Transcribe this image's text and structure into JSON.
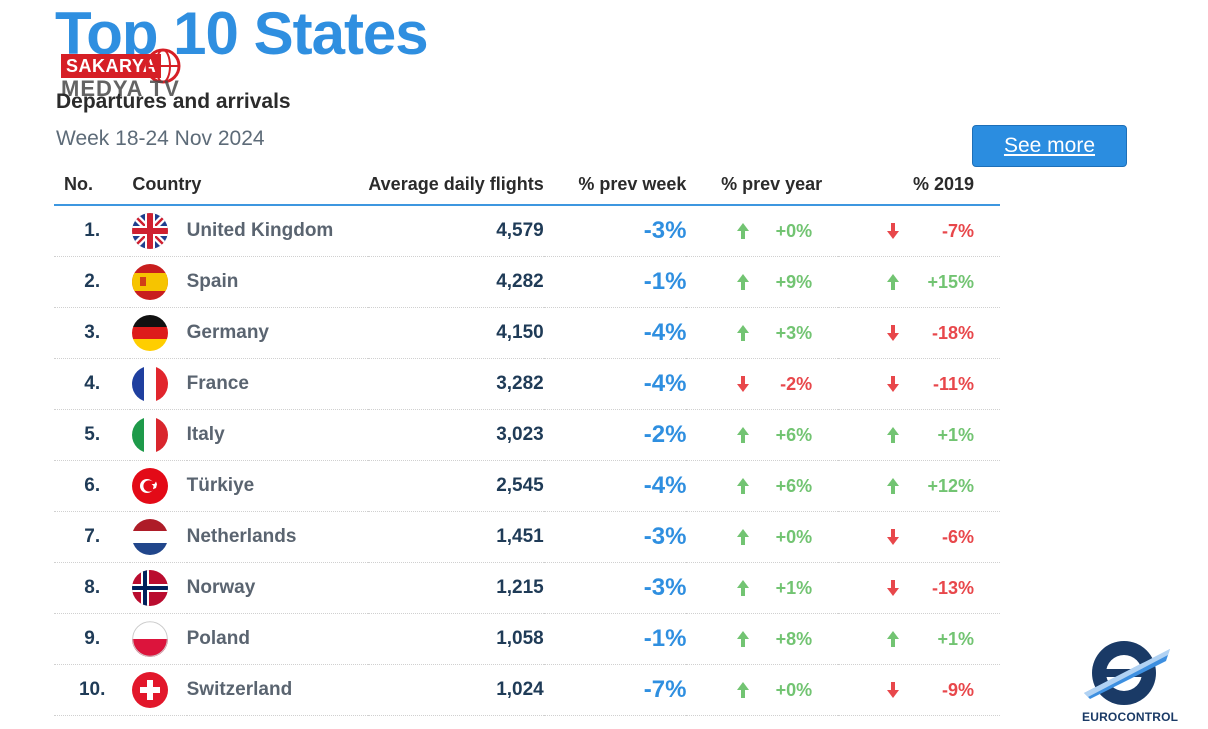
{
  "header": {
    "title": "Top 10 States",
    "subtitle": "Departures and arrivals",
    "week": "Week 18-24 Nov 2024",
    "see_more": "See more"
  },
  "watermark": {
    "badge": "SAKARYA",
    "text": "MEDYA TV"
  },
  "table": {
    "columns": [
      "No.",
      "Country",
      "Average daily flights",
      "% prev week",
      "% prev year",
      "% 2019"
    ],
    "rows": [
      {
        "no": "1.",
        "country": "United Kingdom",
        "flag": "uk-flag-icon",
        "flights": "4,579",
        "prev_week": "-3%",
        "prev_year": "+0%",
        "prev_year_dir": "up",
        "y2019": "-7%",
        "y2019_dir": "down"
      },
      {
        "no": "2.",
        "country": "Spain",
        "flag": "spain-flag-icon",
        "flights": "4,282",
        "prev_week": "-1%",
        "prev_year": "+9%",
        "prev_year_dir": "up",
        "y2019": "+15%",
        "y2019_dir": "up"
      },
      {
        "no": "3.",
        "country": "Germany",
        "flag": "germany-flag-icon",
        "flights": "4,150",
        "prev_week": "-4%",
        "prev_year": "+3%",
        "prev_year_dir": "up",
        "y2019": "-18%",
        "y2019_dir": "down"
      },
      {
        "no": "4.",
        "country": "France",
        "flag": "france-flag-icon",
        "flights": "3,282",
        "prev_week": "-4%",
        "prev_year": "-2%",
        "prev_year_dir": "down",
        "y2019": "-11%",
        "y2019_dir": "down"
      },
      {
        "no": "5.",
        "country": "Italy",
        "flag": "italy-flag-icon",
        "flights": "3,023",
        "prev_week": "-2%",
        "prev_year": "+6%",
        "prev_year_dir": "up",
        "y2019": "+1%",
        "y2019_dir": "up"
      },
      {
        "no": "6.",
        "country": "Türkiye",
        "flag": "turkiye-flag-icon",
        "flights": "2,545",
        "prev_week": "-4%",
        "prev_year": "+6%",
        "prev_year_dir": "up",
        "y2019": "+12%",
        "y2019_dir": "up"
      },
      {
        "no": "7.",
        "country": "Netherlands",
        "flag": "netherlands-flag-icon",
        "flights": "1,451",
        "prev_week": "-3%",
        "prev_year": "+0%",
        "prev_year_dir": "up",
        "y2019": "-6%",
        "y2019_dir": "down"
      },
      {
        "no": "8.",
        "country": "Norway",
        "flag": "norway-flag-icon",
        "flights": "1,215",
        "prev_week": "-3%",
        "prev_year": "+1%",
        "prev_year_dir": "up",
        "y2019": "-13%",
        "y2019_dir": "down"
      },
      {
        "no": "9.",
        "country": "Poland",
        "flag": "poland-flag-icon",
        "flights": "1,058",
        "prev_week": "-1%",
        "prev_year": "+8%",
        "prev_year_dir": "up",
        "y2019": "+1%",
        "y2019_dir": "up"
      },
      {
        "no": "10.",
        "country": "Switzerland",
        "flag": "switzerland-flag-icon",
        "flights": "1,024",
        "prev_week": "-7%",
        "prev_year": "+0%",
        "prev_year_dir": "up",
        "y2019": "-9%",
        "y2019_dir": "down"
      }
    ]
  },
  "logo": {
    "text": "EUROCONTROL"
  },
  "colors": {
    "accent": "#2f8fe0",
    "up": "#72c472",
    "down": "#e8474b",
    "text": "#1f3b57"
  }
}
